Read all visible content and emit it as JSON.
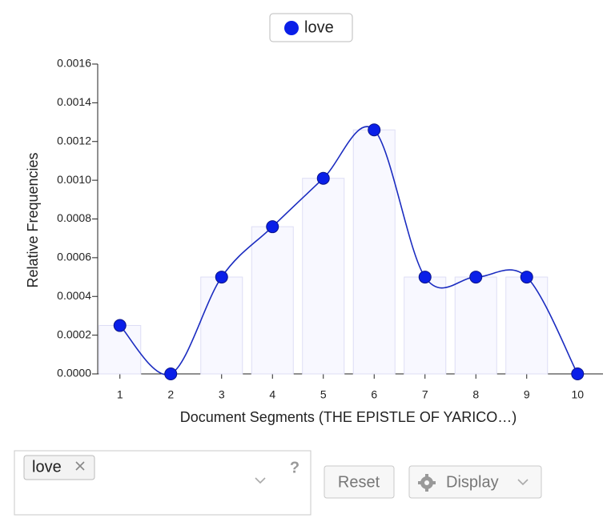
{
  "chart_data": {
    "type": "line",
    "x_label": "Document Segments (THE EPISTLE OF YARICO…)",
    "y_label": "Relative Frequencies",
    "categories": [
      "1",
      "2",
      "3",
      "4",
      "5",
      "6",
      "7",
      "8",
      "9",
      "10"
    ],
    "series": [
      {
        "name": "love",
        "color": "#0a1fe8",
        "values": [
          0.00025,
          0,
          0.0005,
          0.00076,
          0.00101,
          0.00126,
          0.0005,
          0.0005,
          0.0005,
          0
        ]
      }
    ],
    "ylim": [
      0,
      0.0016
    ],
    "yticks": [
      {
        "value": 0,
        "label": "0.0000"
      },
      {
        "value": 0.0002,
        "label": "0.0002"
      },
      {
        "value": 0.0004,
        "label": "0.0004"
      },
      {
        "value": 0.0006,
        "label": "0.0006"
      },
      {
        "value": 0.0008,
        "label": "0.0008"
      },
      {
        "value": 0.001,
        "label": "0.0010"
      },
      {
        "value": 0.0012,
        "label": "0.0012"
      },
      {
        "value": 0.0014,
        "label": "0.0014"
      },
      {
        "value": 0.0016,
        "label": "0.0016"
      }
    ],
    "smooth": true,
    "bars": true
  },
  "controls": {
    "tags": [
      "love"
    ],
    "help": "?",
    "reset": "Reset",
    "display": "Display"
  }
}
